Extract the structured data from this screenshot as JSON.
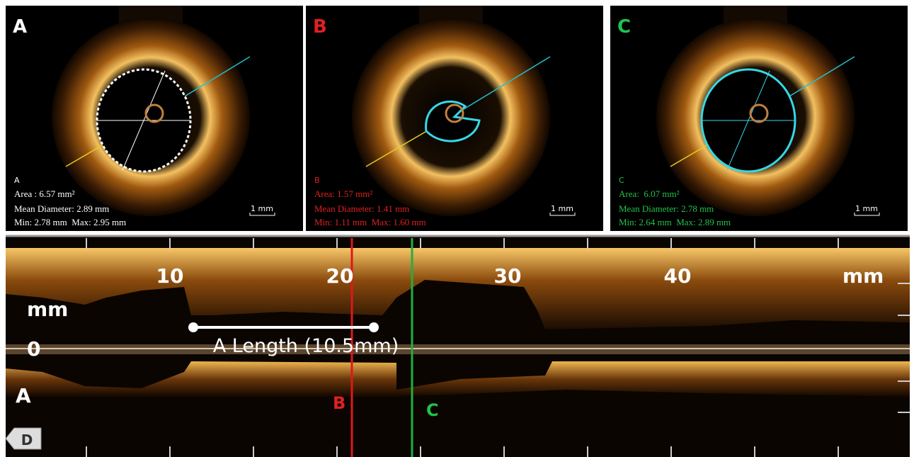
{
  "panels": [
    {
      "label": "A",
      "caption": "A",
      "area": "Area : 6.57 mm²",
      "mean_diameter": "Mean Diameter: 2.89 mm",
      "min_max": "Min: 2.78 mm  Max: 2.95 mm",
      "scale": "1 mm"
    },
    {
      "label": "B",
      "caption": "B",
      "area": "Area: 1.57 mm²",
      "mean_diameter": "Mean Diameter: 1.41 mm",
      "min_max": "Min: 1.11 mm  Max: 1.60 mm",
      "scale": "1 mm"
    },
    {
      "label": "C",
      "caption": "C",
      "area": "Area:  6.07 mm²",
      "mean_diameter": "Mean Diameter: 2.78 mm",
      "min_max": "Min: 2.64 mm  Max: 2.89 mm",
      "scale": "1 mm"
    }
  ],
  "longitudinal": {
    "ticks": [
      "10",
      "20",
      "30",
      "40"
    ],
    "unit_top": "mm",
    "unit_left": "mm",
    "zero": "0",
    "side_label": "A",
    "length_label": "A Length (10.5mm)",
    "marker_b": "B",
    "marker_c": "C",
    "button": "D"
  }
}
